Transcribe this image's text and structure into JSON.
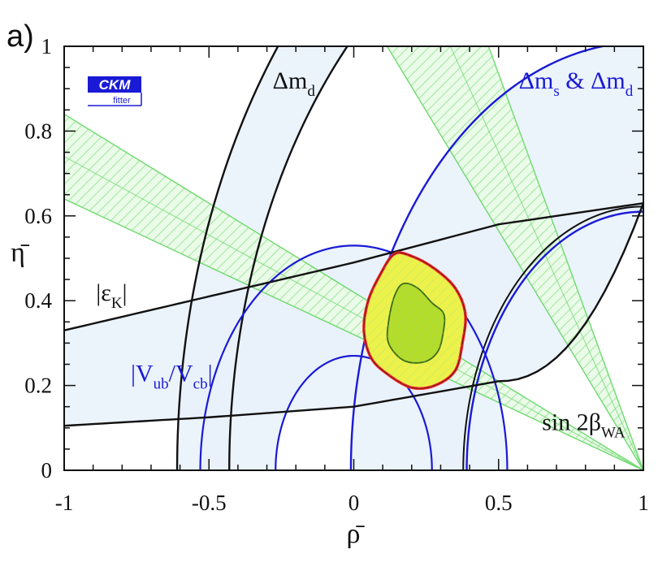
{
  "panel_label": "a)",
  "logo": {
    "line1": "CKM",
    "line2": "fitter"
  },
  "chart_data": {
    "type": "contour",
    "xlabel": "ρ̄",
    "ylabel": "η̄",
    "xlim": [
      -1,
      1
    ],
    "ylim": [
      0,
      1
    ],
    "xticks": [
      "-1",
      "-0.5",
      "0",
      "0.5",
      "1"
    ],
    "yticks": [
      "0",
      "0.2",
      "0.4",
      "0.6",
      "0.8",
      "1"
    ],
    "constraints": [
      {
        "name": "Δm_d",
        "color": "#111111",
        "center": [
          1,
          0
        ],
        "radii": [
          1.43,
          1.61
        ]
      },
      {
        "name": "Δm_s & Δm_d",
        "color": "#1a1ad6",
        "center": [
          1,
          0
        ],
        "radii": [
          0.61,
          1.01
        ]
      },
      {
        "name": "|V_ub/V_cb|",
        "color": "#1a1ad6",
        "center": [
          0,
          0
        ],
        "radii": [
          0.27,
          0.53
        ]
      },
      {
        "name": "|ε_K|",
        "color": "#111111",
        "upper_curve": [
          [
            -1,
            0.33
          ],
          [
            -0.5,
            0.41
          ],
          [
            0,
            0.49
          ],
          [
            0.5,
            0.58
          ],
          [
            1,
            0.63
          ]
        ],
        "lower_curve": [
          [
            -1,
            0.105
          ],
          [
            -0.5,
            0.125
          ],
          [
            0,
            0.15
          ],
          [
            0.5,
            0.21
          ],
          [
            1,
            0.63
          ]
        ]
      },
      {
        "name": "sin 2β_WA",
        "color": "#6fd96f",
        "apex": [
          1,
          0
        ],
        "slopes": [
          -0.32,
          -0.42,
          -1.13,
          -1.87
        ]
      }
    ],
    "fit_region": {
      "outer_color": "#ff2a2a",
      "outer": [
        [
          0.14,
          0.51
        ],
        [
          0.2,
          0.505
        ],
        [
          0.28,
          0.475
        ],
        [
          0.35,
          0.43
        ],
        [
          0.385,
          0.37
        ],
        [
          0.375,
          0.3
        ],
        [
          0.35,
          0.235
        ],
        [
          0.28,
          0.2
        ],
        [
          0.2,
          0.195
        ],
        [
          0.12,
          0.225
        ],
        [
          0.06,
          0.265
        ],
        [
          0.035,
          0.33
        ],
        [
          0.05,
          0.4
        ],
        [
          0.09,
          0.46
        ]
      ],
      "inner_color": "#3d6b1a",
      "inner": [
        [
          0.17,
          0.44
        ],
        [
          0.22,
          0.43
        ],
        [
          0.27,
          0.395
        ],
        [
          0.31,
          0.37
        ],
        [
          0.31,
          0.33
        ],
        [
          0.29,
          0.28
        ],
        [
          0.24,
          0.255
        ],
        [
          0.17,
          0.26
        ],
        [
          0.12,
          0.3
        ],
        [
          0.12,
          0.35
        ],
        [
          0.14,
          0.41
        ]
      ]
    },
    "annotations": [
      {
        "text": "Δm",
        "sub": "d",
        "color": "#111111",
        "at": [
          -0.28,
          0.9
        ]
      },
      {
        "text": "Δm",
        "sub": "s",
        "text2": " & Δm",
        "sub2": "d",
        "color": "#1a1ad6",
        "at": [
          0.57,
          0.9
        ]
      },
      {
        "text": "|ε",
        "sub": "K",
        "text2": "|",
        "color": "#111111",
        "at": [
          -0.89,
          0.4
        ]
      },
      {
        "text": "|V",
        "sub": "ub",
        "text2": "/V",
        "sub2": "cb",
        "text3": "|",
        "color": "#1a1ad6",
        "at": [
          -0.77,
          0.21
        ]
      },
      {
        "text": "sin 2β",
        "sub": "WA",
        "color": "#111111",
        "at": [
          0.65,
          0.095
        ]
      }
    ]
  }
}
